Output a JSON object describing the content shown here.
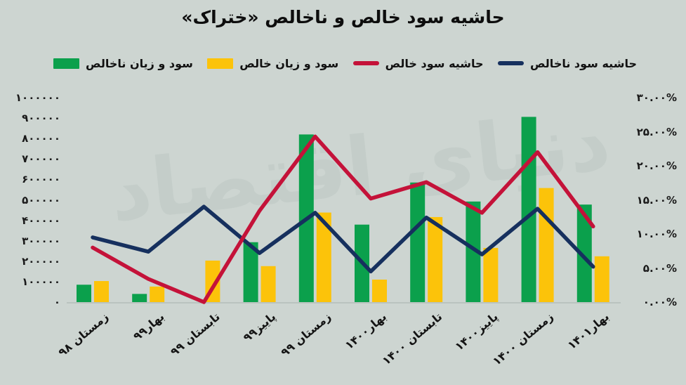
{
  "title": "حاشیه سود خالص و ناخالص «ختراک»",
  "watermark": {
    "text": "دنیای اقتصاد"
  },
  "colors": {
    "background": "#cdd5d1",
    "gross_pl_bar": "#0ba04c",
    "net_pl_bar": "#fcc30a",
    "net_margin_line": "#c41239",
    "gross_margin_line": "#16305e",
    "baseline": "#bac3bf",
    "text": "#141414"
  },
  "legend": [
    {
      "label": "سود و زیان ناخالص",
      "color": "#0ba04c",
      "type": "bar"
    },
    {
      "label": "سود و زیان خالص",
      "color": "#fcc30a",
      "type": "bar"
    },
    {
      "label": "حاشیه سود خالص",
      "color": "#c41239",
      "type": "line"
    },
    {
      "label": "حاشیه سود ناخالص",
      "color": "#16305e",
      "type": "line"
    }
  ],
  "axes": {
    "left_tick_labels": [
      "۱۰۰۰۰۰۰",
      "۹۰۰۰۰۰",
      "۸۰۰۰۰۰",
      "۷۰۰۰۰۰",
      "۶۰۰۰۰۰",
      "۵۰۰۰۰۰",
      "۴۰۰۰۰۰",
      "۳۰۰۰۰۰",
      "۲۰۰۰۰۰",
      "۱۰۰۰۰۰",
      "۰"
    ],
    "right_tick_labels": [
      "۳۰.۰۰%",
      "۲۵.۰۰%",
      "۲۰.۰۰%",
      "۱۵.۰۰%",
      "۱۰.۰۰%",
      "۵.۰۰%",
      "۰.۰۰%"
    ]
  },
  "chart_data": {
    "type": "bar",
    "subtype": "combo bar + line, dual axis",
    "title": "حاشیه سود خالص و ناخالص «ختراک»",
    "categories": [
      "زمستان ۹۸",
      "بهار۹۹",
      "تابستان ۹۹",
      "پاییز۹۹",
      "زمستان ۹۹",
      "بهار۱۴۰۰",
      "تابستان ۱۴۰۰",
      "پاییز۱۴۰۰",
      "زمستان ۱۴۰۰",
      "بهار۱۴۰۱"
    ],
    "series": [
      {
        "name": "سود و زیان ناخالص",
        "type": "bar",
        "axis": "left",
        "color": "#0ba04c",
        "values": [
          85000,
          40000,
          0,
          293000,
          820000,
          379000,
          585000,
          492000,
          906000,
          477000
        ]
      },
      {
        "name": "سود و زیان خالص",
        "type": "bar",
        "axis": "left",
        "color": "#fcc30a",
        "values": [
          103000,
          76000,
          203000,
          176000,
          438000,
          110000,
          416000,
          265000,
          558000,
          224000
        ]
      },
      {
        "name": "حاشیه سود خالص",
        "type": "line",
        "axis": "right",
        "color": "#c41239",
        "values": [
          8.0,
          3.4,
          0.0,
          13.4,
          24.3,
          15.2,
          17.6,
          13.1,
          22.0,
          11.1
        ]
      },
      {
        "name": "حاشیه سود ناخالص",
        "type": "line",
        "axis": "right",
        "color": "#16305e",
        "values": [
          9.5,
          7.4,
          14.0,
          7.2,
          13.1,
          4.5,
          12.4,
          7.0,
          13.7,
          5.2
        ]
      }
    ],
    "left_axis": {
      "min": 0,
      "max": 1000000,
      "tick_step": 100000
    },
    "right_axis": {
      "min": 0,
      "max": 30,
      "tick_step": 5,
      "unit": "%"
    },
    "grid": false,
    "legend_position": "top"
  }
}
